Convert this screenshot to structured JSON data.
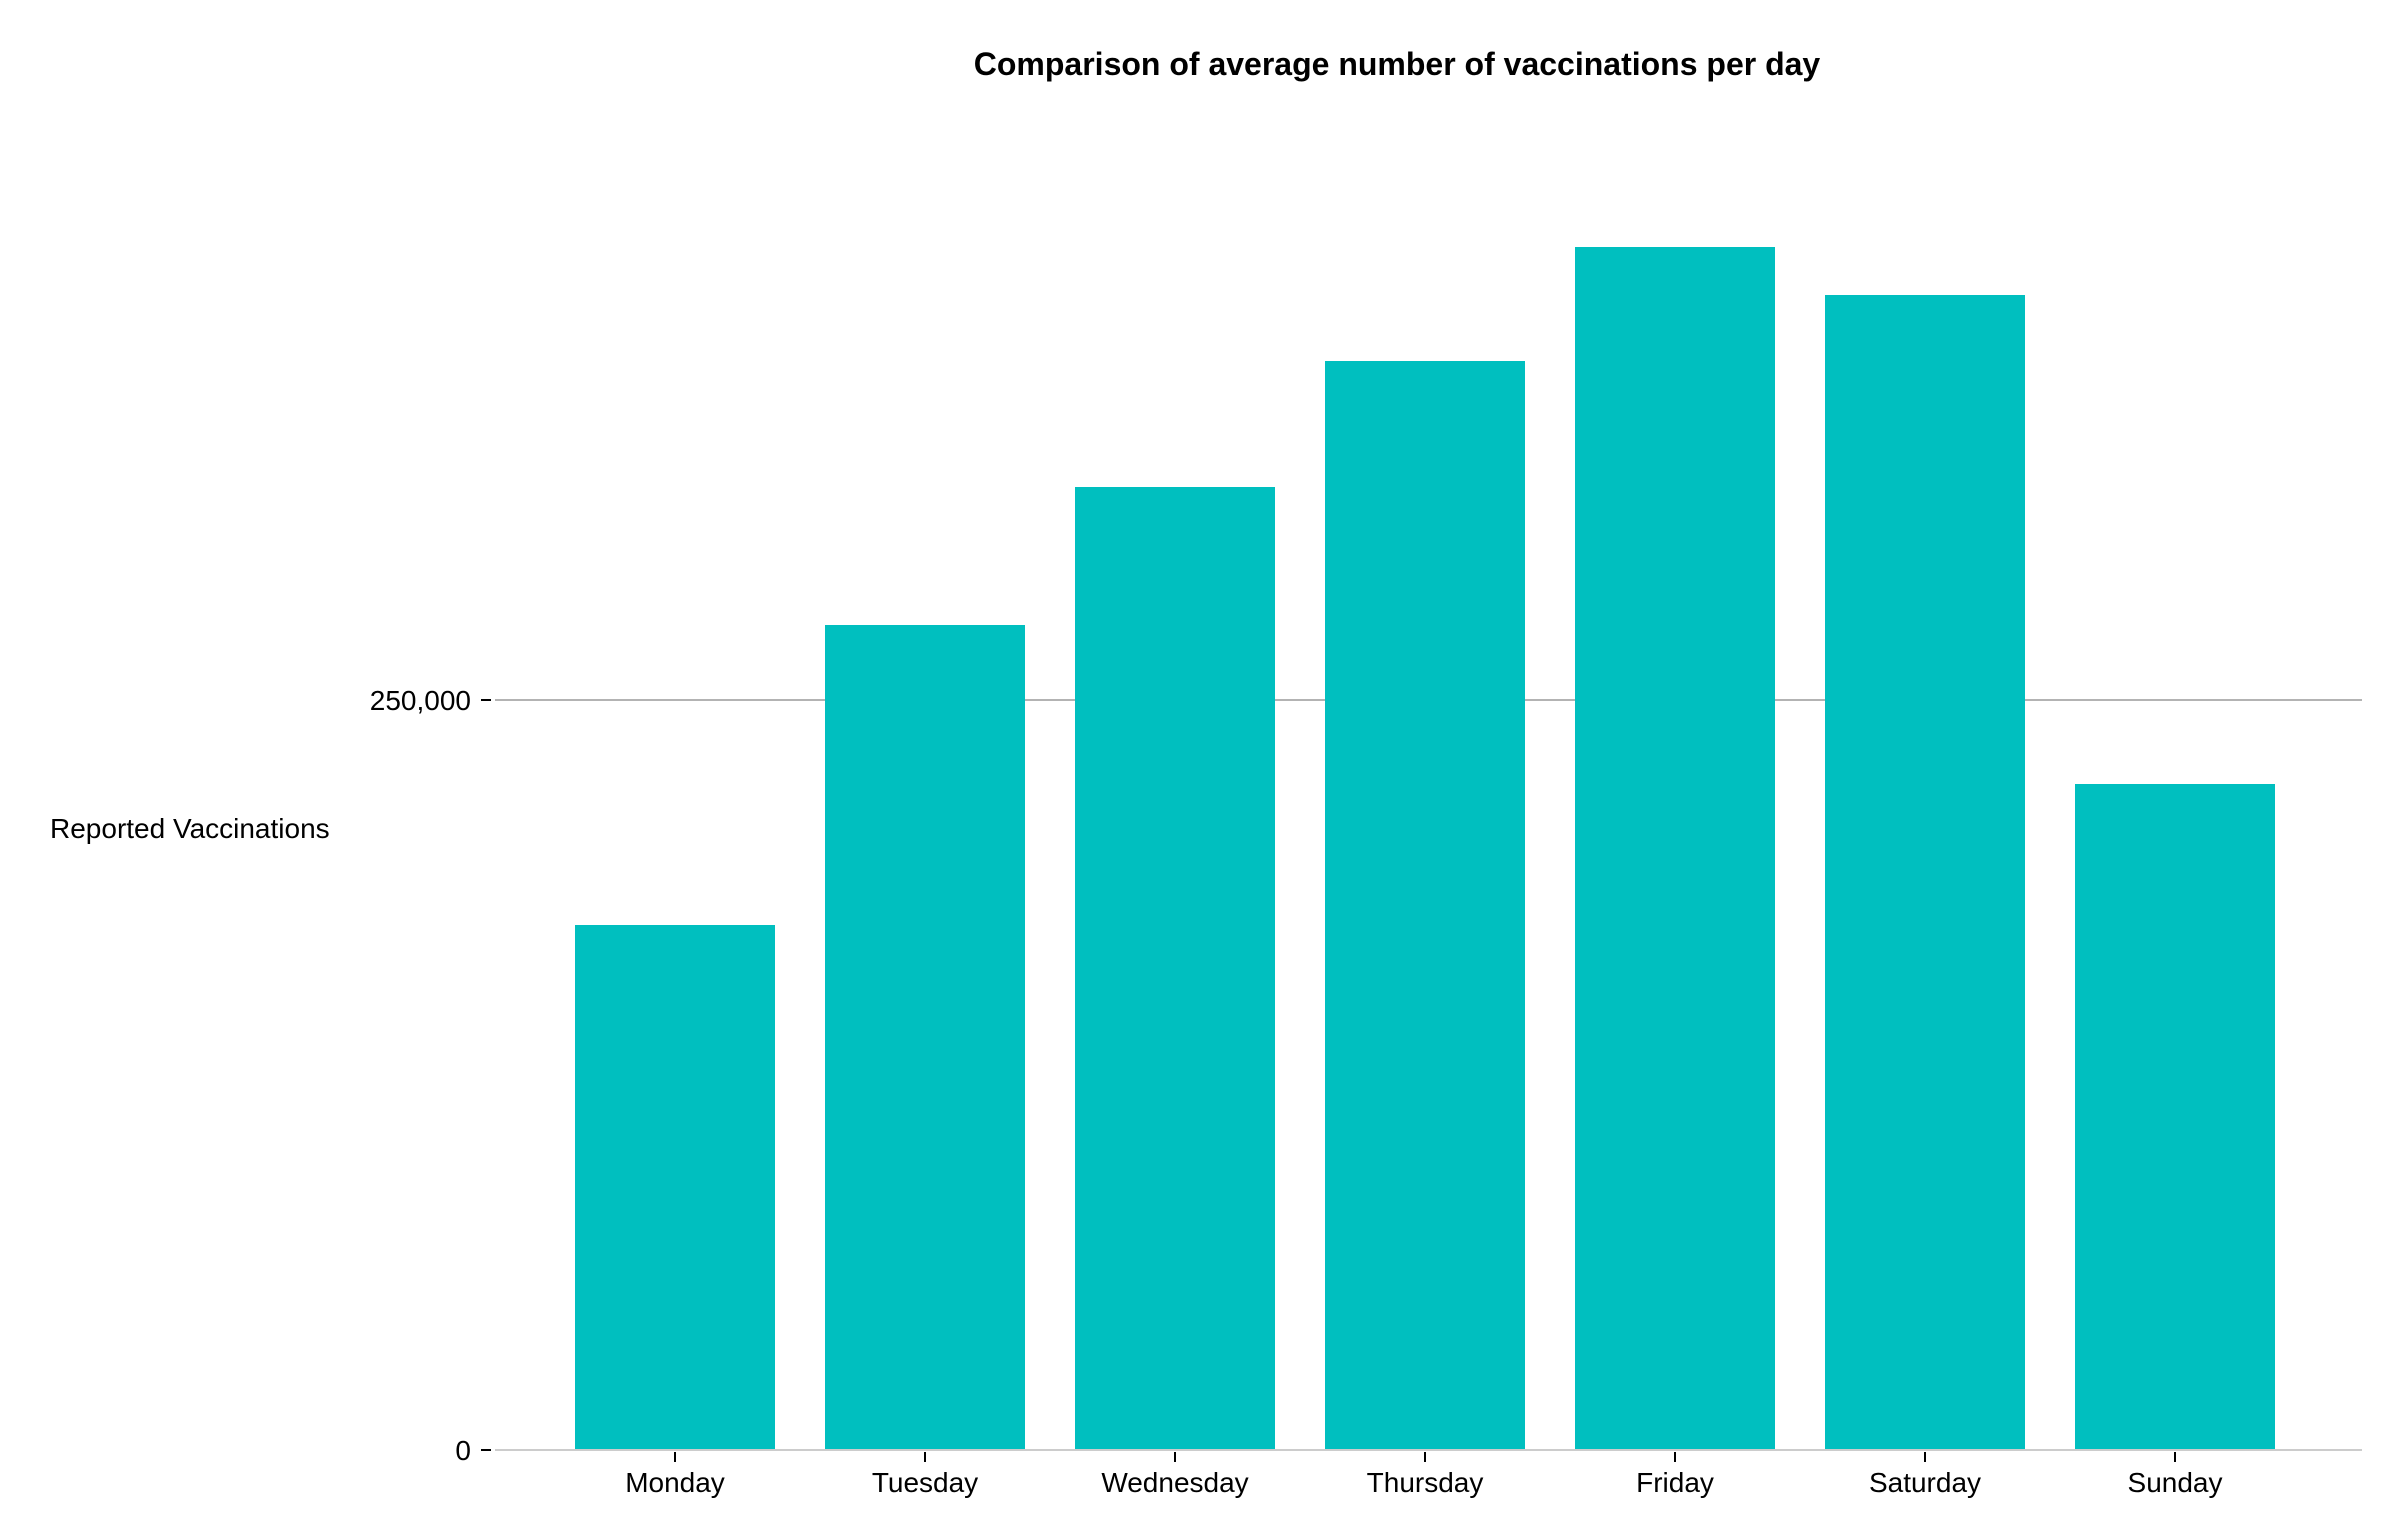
{
  "chart_data": {
    "type": "bar",
    "title": "Comparison of average number of vaccinations per day",
    "xlabel": "",
    "ylabel": "Reported Vaccinations",
    "categories": [
      "Monday",
      "Tuesday",
      "Wednesday",
      "Thursday",
      "Friday",
      "Saturday",
      "Sunday"
    ],
    "values": [
      175000,
      275000,
      321000,
      363000,
      401000,
      385000,
      222000
    ],
    "ylim": [
      0,
      450000
    ],
    "yticks": [
      0,
      250000
    ],
    "ytick_labels": [
      "0",
      "250,000"
    ],
    "bar_color": "#00BFBF",
    "grid": true,
    "legend": "none"
  }
}
